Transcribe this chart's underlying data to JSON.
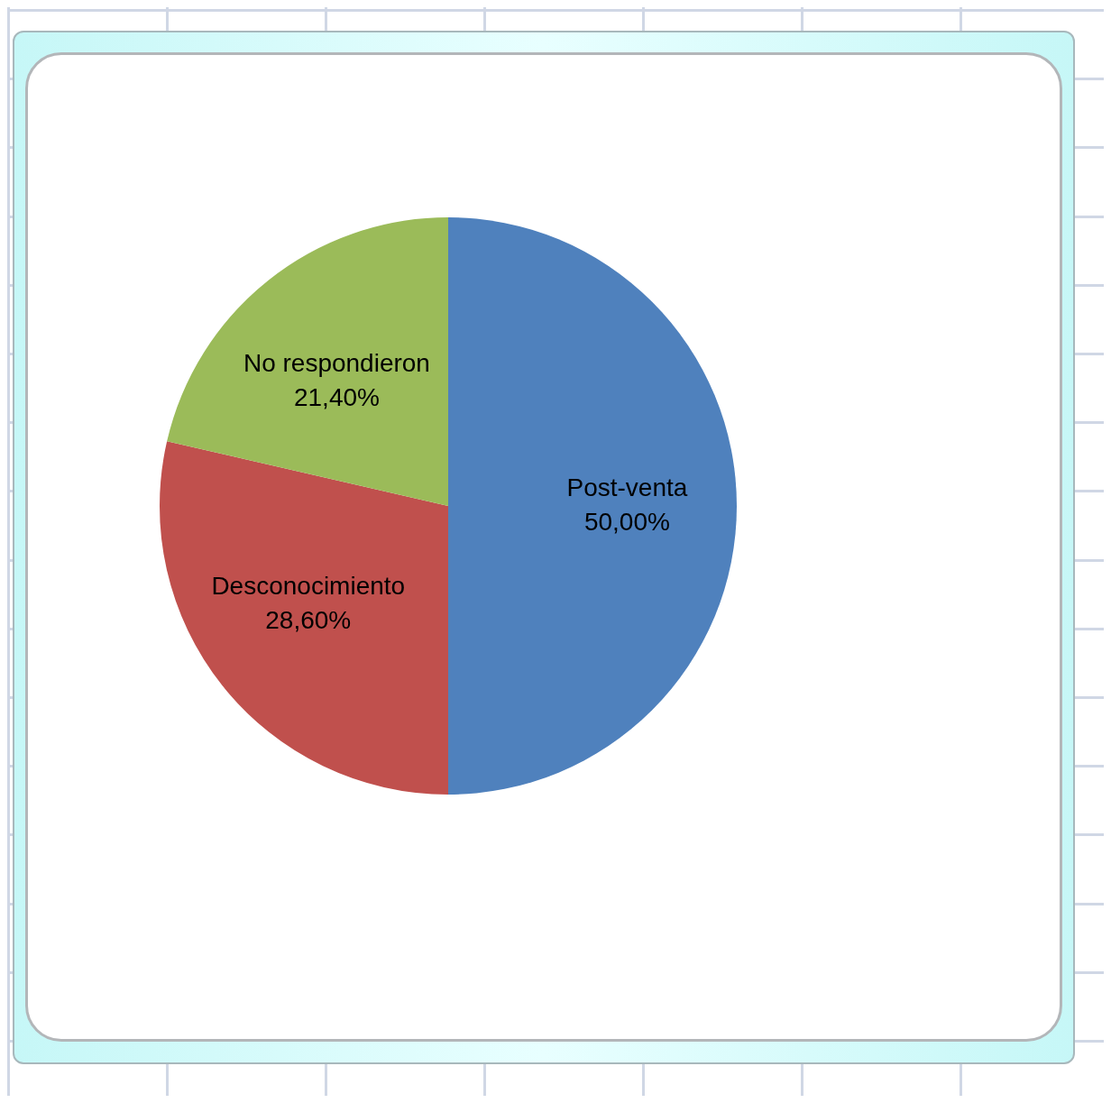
{
  "chart_data": {
    "type": "pie",
    "categories": [
      "Post-venta",
      "Desconocimiento",
      "No respondieron"
    ],
    "values": [
      50,
      28.6,
      21.4
    ],
    "colors": [
      "#4f81bd",
      "#c0504d",
      "#9bbb59"
    ],
    "value_labels": [
      "50,00%",
      "28,60%",
      "21,40%"
    ]
  }
}
